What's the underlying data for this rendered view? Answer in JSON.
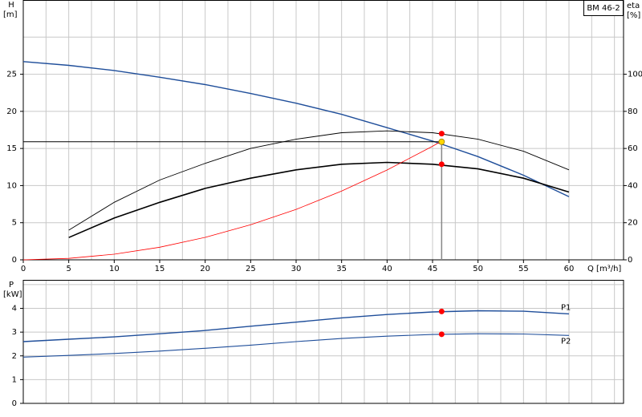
{
  "chart_data": [
    {
      "type": "line",
      "title": "BM 46-2",
      "xlabel": "Q [m³/h]",
      "ylabel": "H",
      "yunit": "[m]",
      "y2label": "eta",
      "y2unit": "[%]",
      "xlim": [
        0,
        66
      ],
      "ylim": [
        0,
        35
      ],
      "y2lim": [
        0,
        140
      ],
      "xticks": [
        0,
        5,
        10,
        15,
        20,
        25,
        30,
        35,
        40,
        45,
        50,
        55,
        60
      ],
      "yticks": [
        0,
        5,
        10,
        15,
        20,
        25
      ],
      "y2ticks": [
        0,
        20,
        40,
        60,
        80,
        100
      ],
      "xgrid": [
        2.5,
        5,
        7.5,
        10,
        12.5,
        15,
        17.5,
        20,
        22.5,
        25,
        27.5,
        30,
        32.5,
        35,
        37.5,
        40,
        42.5,
        45,
        47.5,
        50,
        52.5,
        55,
        57.5,
        60,
        62.5,
        65
      ],
      "ygrid": [
        5,
        10,
        15,
        20,
        25,
        30
      ],
      "series": [
        {
          "color": "#1f4e9a",
          "width": 1.4,
          "x": [
            0,
            5,
            10,
            15,
            20,
            25,
            30,
            35,
            40,
            45,
            50,
            55,
            60
          ],
          "values": [
            26.7,
            26.2,
            25.5,
            24.6,
            23.6,
            22.4,
            21.1,
            19.6,
            17.8,
            16.0,
            13.9,
            11.4,
            8.5
          ]
        },
        {
          "color": "#000000",
          "width": 0.9,
          "axis": "y2",
          "x": [
            5,
            10,
            15,
            20,
            25,
            30,
            35,
            40,
            45,
            50,
            55,
            60
          ],
          "values": [
            16,
            31,
            43,
            52,
            60,
            65,
            68.5,
            69.5,
            68.5,
            65,
            58.5,
            48.5
          ]
        },
        {
          "color": "#000000",
          "width": 1.6,
          "axis": "y2",
          "x": [
            5,
            10,
            15,
            20,
            25,
            30,
            35,
            40,
            45,
            50,
            55,
            60
          ],
          "values": [
            12,
            22.5,
            31,
            38.5,
            44,
            48.5,
            51.5,
            52.5,
            51.5,
            49,
            44,
            36.5
          ]
        },
        {
          "color": "#ff0000",
          "width": 0.8,
          "x": [
            0,
            5,
            10,
            15,
            20,
            25,
            30,
            35,
            40,
            45,
            46
          ],
          "values": [
            0,
            0.19,
            0.76,
            1.7,
            3.02,
            4.73,
            6.8,
            9.26,
            12.1,
            15.3,
            16.0
          ]
        }
      ],
      "markers": [
        {
          "x": 46,
          "y": 15.9,
          "color": "#ffd700",
          "guides": true
        },
        {
          "x": 46,
          "y": 68,
          "axis": "y2",
          "color": "#ff0000"
        },
        {
          "x": 46,
          "y": 51.5,
          "axis": "y2",
          "color": "#ff0000"
        }
      ]
    },
    {
      "type": "line",
      "ylabel": "P",
      "yunit": "[kW]",
      "xlim": [
        0,
        66
      ],
      "ylim": [
        0,
        5.2
      ],
      "yticks": [
        0,
        1,
        2,
        3,
        4
      ],
      "xgrid": [
        2.5,
        5,
        7.5,
        10,
        12.5,
        15,
        17.5,
        20,
        22.5,
        25,
        27.5,
        30,
        32.5,
        35,
        37.5,
        40,
        42.5,
        45,
        47.5,
        50,
        52.5,
        55,
        57.5,
        60,
        62.5,
        65
      ],
      "ygrid": [
        1,
        2,
        3,
        4,
        5
      ],
      "series": [
        {
          "name": "P1",
          "color": "#1f4e9a",
          "width": 1.4,
          "x": [
            0,
            5,
            10,
            15,
            20,
            25,
            30,
            35,
            40,
            45,
            50,
            55,
            60
          ],
          "values": [
            2.6,
            2.7,
            2.8,
            2.93,
            3.07,
            3.25,
            3.42,
            3.6,
            3.74,
            3.85,
            3.9,
            3.88,
            3.77
          ]
        },
        {
          "name": "P2",
          "color": "#1f4e9a",
          "width": 1.1,
          "x": [
            0,
            5,
            10,
            15,
            20,
            25,
            30,
            35,
            40,
            45,
            50,
            55,
            60
          ],
          "values": [
            1.95,
            2.02,
            2.1,
            2.2,
            2.32,
            2.45,
            2.6,
            2.73,
            2.83,
            2.9,
            2.93,
            2.92,
            2.86
          ]
        }
      ],
      "markers": [
        {
          "x": 46,
          "y": 3.87,
          "color": "#ff0000"
        },
        {
          "x": 46,
          "y": 2.91,
          "color": "#ff0000"
        }
      ]
    }
  ]
}
